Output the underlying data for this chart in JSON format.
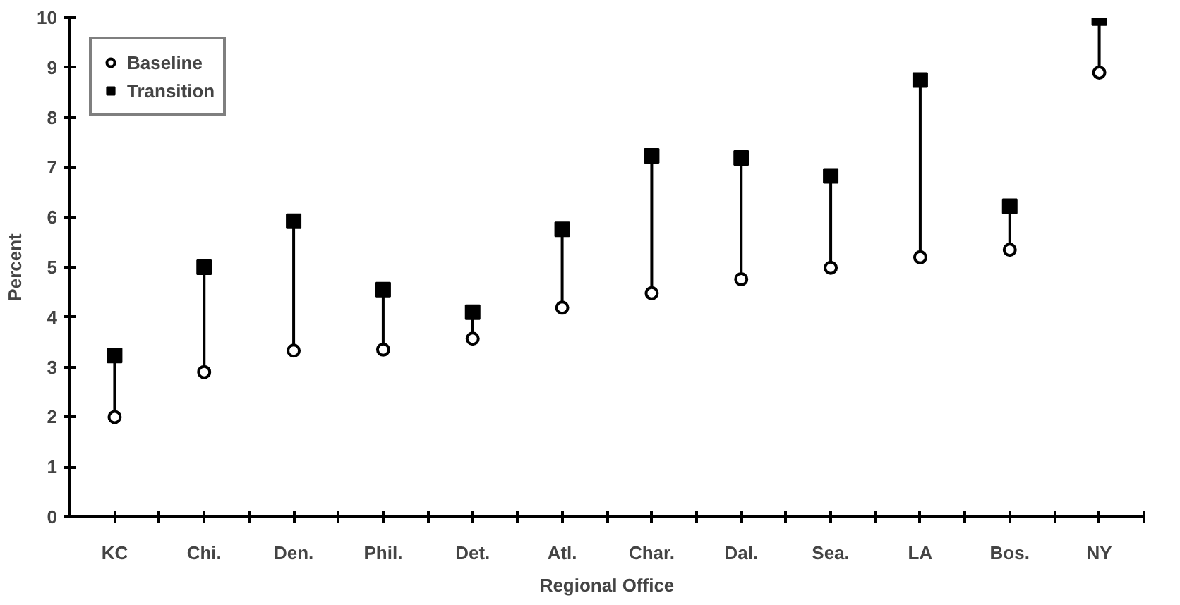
{
  "chart_data": {
    "type": "scatter",
    "xlabel": "Regional Office",
    "ylabel": "Percent",
    "categories": [
      "KC",
      "Chi.",
      "Den.",
      "Phil.",
      "Det.",
      "Atl.",
      "Char.",
      "Dal.",
      "Sea.",
      "LA",
      "Bos.",
      "NY"
    ],
    "series": [
      {
        "name": "Baseline",
        "color": "#000000",
        "marker": "circle",
        "values": [
          2.0,
          2.9,
          3.33,
          3.35,
          3.57,
          4.19,
          4.48,
          4.76,
          4.99,
          5.2,
          5.35,
          8.9
        ]
      },
      {
        "name": "Transition",
        "color": "#000000",
        "marker": "square",
        "values": [
          3.23,
          5.0,
          5.92,
          4.55,
          4.1,
          5.76,
          7.23,
          7.19,
          6.83,
          8.75,
          6.22,
          9.99
        ]
      }
    ],
    "ylim": [
      0,
      10
    ],
    "yticks": [
      0,
      1,
      2,
      3,
      4,
      5,
      6,
      7,
      8,
      9,
      10
    ],
    "grid": false,
    "legend": "top left"
  }
}
